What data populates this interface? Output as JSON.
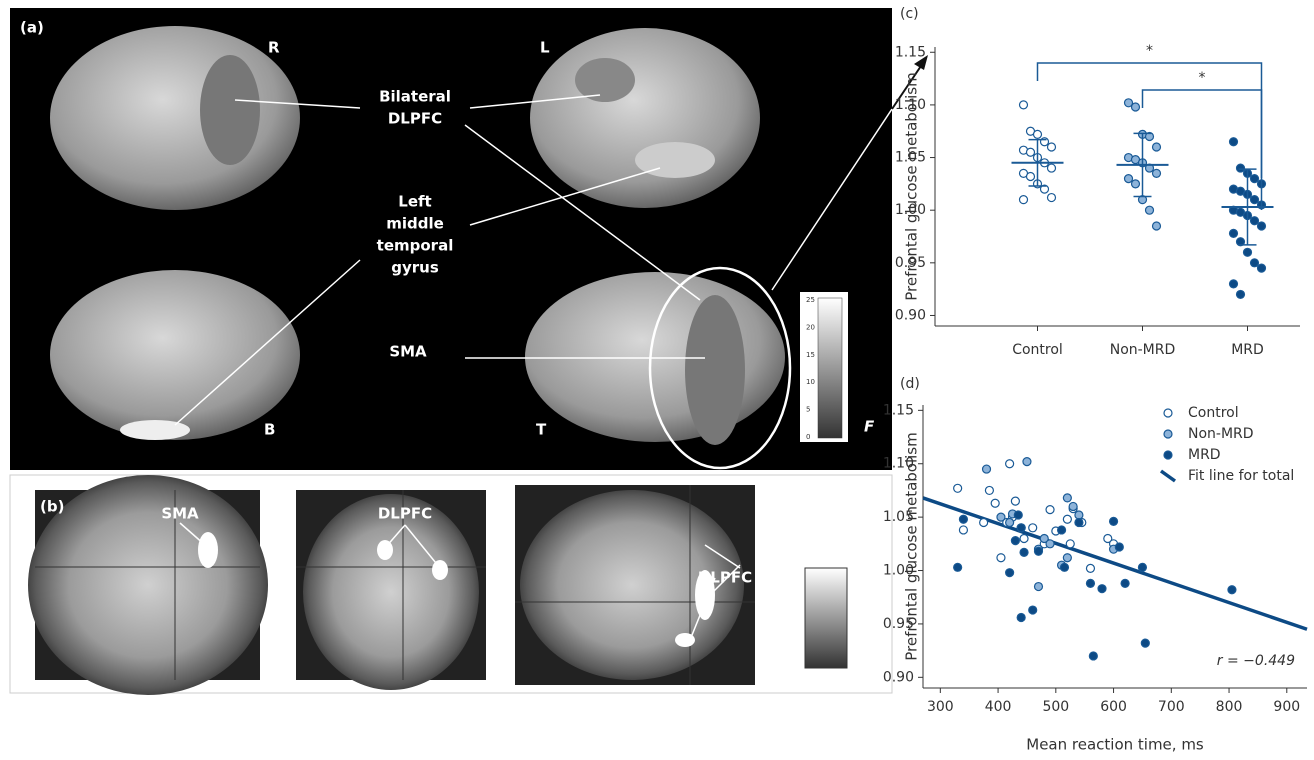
{
  "panels": {
    "a": {
      "label": "(a)",
      "views": [
        "R",
        "L",
        "B",
        "T",
        "F"
      ],
      "regions": {
        "dlpfc": [
          "Bilateral",
          "DLPFC"
        ],
        "temporal": [
          "Left",
          "middle",
          "temporal",
          "gyrus"
        ],
        "sma": "SMA"
      },
      "colorbar": [
        "25",
        "20",
        "15",
        "10",
        "5",
        "0"
      ]
    },
    "b": {
      "label": "(b)",
      "regions": [
        "SMA",
        "DLPFC",
        "DLPFC"
      ]
    }
  },
  "chart_data": [
    {
      "type": "dotplot",
      "panel_label": "(c)",
      "y_label": "Prefrontal glucose metabolism",
      "categories": [
        "Control",
        "Non-MRD",
        "MRD"
      ],
      "edge_color": "#1a5a96",
      "groups": [
        {
          "color": "#ffffff",
          "values": [
            1.1,
            1.075,
            1.072,
            1.065,
            1.06,
            1.057,
            1.055,
            1.05,
            1.045,
            1.04,
            1.035,
            1.032,
            1.025,
            1.02,
            1.012,
            1.01
          ],
          "mean": 1.045,
          "sd": 0.022
        },
        {
          "color": "#8db3d9",
          "values": [
            1.102,
            1.098,
            1.072,
            1.07,
            1.06,
            1.05,
            1.048,
            1.045,
            1.04,
            1.035,
            1.03,
            1.025,
            1.01,
            1.0,
            0.985
          ],
          "mean": 1.043,
          "sd": 0.03
        },
        {
          "color": "#0d4a85",
          "values": [
            1.065,
            1.04,
            1.035,
            1.03,
            1.025,
            1.02,
            1.018,
            1.015,
            1.01,
            1.005,
            1.0,
            0.998,
            0.995,
            0.99,
            0.985,
            0.978,
            0.97,
            0.96,
            0.95,
            0.945,
            0.93,
            0.92
          ],
          "mean": 1.003,
          "sd": 0.036
        }
      ],
      "significance": [
        {
          "text": "*",
          "from": 0,
          "to": 2
        },
        {
          "text": "*",
          "from": 1,
          "to": 2
        }
      ],
      "ylim": [
        0.89,
        1.155
      ],
      "yticks": [
        {
          "value": 0.9,
          "label": "0.90"
        },
        0.95,
        {
          "value": 1,
          "label": "1.00"
        },
        1.05,
        {
          "value": 1.1,
          "label": "1.10"
        },
        1.15
      ]
    },
    {
      "type": "scatter",
      "panel_label": "(d)",
      "y_label": "Prefrontal glucose metabolism",
      "x_label": "Mean reaction time, ms",
      "series": [
        {
          "name": "Control",
          "color": "#ffffff",
          "x": [
            330,
            340,
            375,
            385,
            395,
            405,
            415,
            420,
            425,
            430,
            440,
            445,
            460,
            480,
            490,
            500,
            520,
            530,
            545,
            560,
            590,
            600,
            525
          ],
          "values": [
            1.077,
            1.038,
            1.045,
            1.075,
            1.063,
            1.012,
            1.045,
            1.1,
            1.05,
            1.065,
            1.04,
            1.03,
            1.04,
            1.025,
            1.057,
            1.037,
            1.048,
            1.058,
            1.045,
            1.002,
            1.03,
            1.025,
            1.025
          ]
        },
        {
          "name": "Non-MRD",
          "color": "#8db3d9",
          "x": [
            380,
            405,
            420,
            425,
            450,
            470,
            470,
            480,
            490,
            510,
            520,
            520,
            530,
            540,
            600
          ],
          "values": [
            1.095,
            1.05,
            1.045,
            1.053,
            1.102,
            0.985,
            1.02,
            1.03,
            1.025,
            1.005,
            1.068,
            1.012,
            1.06,
            1.052,
            1.02
          ]
        },
        {
          "name": "MRD",
          "color": "#0d4a85",
          "x": [
            330,
            340,
            420,
            430,
            435,
            440,
            440,
            445,
            460,
            470,
            510,
            515,
            540,
            560,
            565,
            580,
            600,
            610,
            620,
            650,
            655,
            805
          ],
          "values": [
            1.003,
            1.048,
            0.998,
            1.028,
            1.052,
            0.956,
            1.04,
            1.017,
            0.963,
            1.018,
            1.038,
            1.003,
            1.045,
            0.988,
            0.92,
            0.983,
            1.046,
            1.022,
            0.988,
            1.003,
            0.932,
            0.982
          ]
        }
      ],
      "fit": {
        "name": "Fit line for total",
        "color": "#0d4a85",
        "x": [
          270,
          935
        ],
        "values": [
          1.068,
          0.945
        ]
      },
      "edge_color": "#1a5a96",
      "annotation": "r = −0.449",
      "legend": "upper right",
      "xlim": [
        270,
        935
      ],
      "xticks": [
        300,
        400,
        500,
        600,
        700,
        800,
        900
      ],
      "ylim": [
        0.89,
        1.155
      ],
      "yticks": [
        {
          "value": 0.9,
          "label": "0.90"
        },
        0.95,
        {
          "value": 1,
          "label": "1.00"
        },
        1.05,
        {
          "value": 1.1,
          "label": "1.10"
        },
        1.15
      ]
    }
  ]
}
